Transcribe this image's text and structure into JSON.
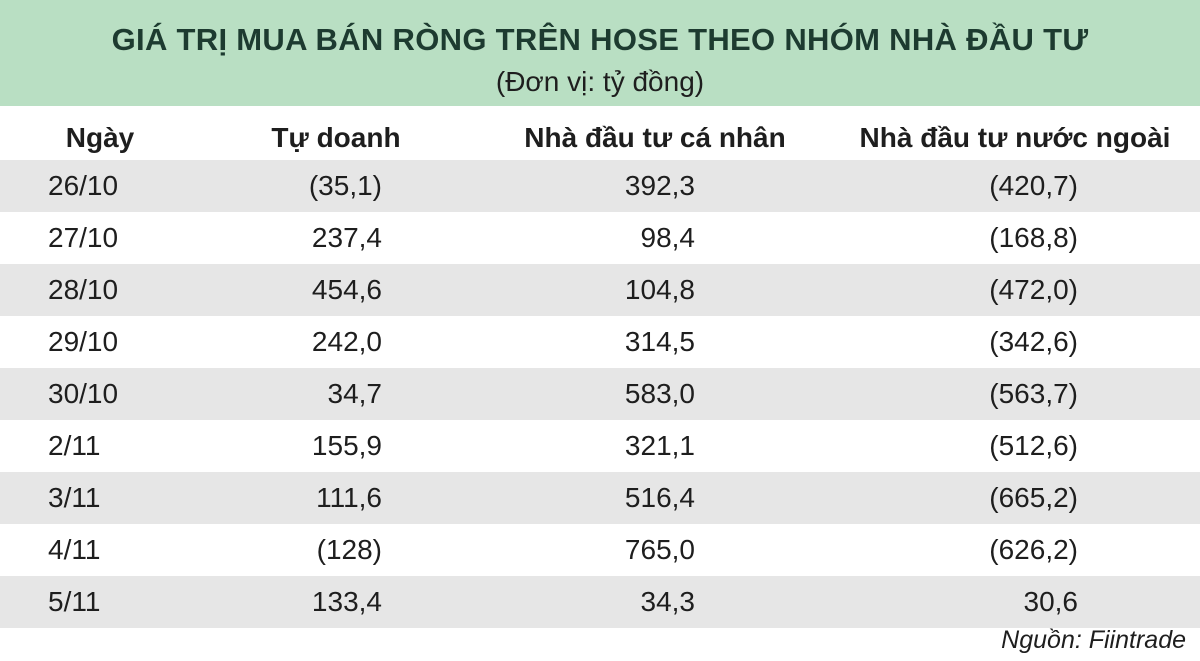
{
  "header": {
    "title": "GIÁ TRỊ MUA BÁN RÒNG TRÊN HOSE THEO NHÓM NHÀ ĐẦU TƯ",
    "subtitle": "(Đơn vị: tỷ đồng)"
  },
  "table": {
    "columns": [
      "Ngày",
      "Tự doanh",
      "Nhà đầu tư cá nhân",
      "Nhà đầu tư nước ngoài"
    ],
    "rows": [
      [
        "26/10",
        "(35,1)",
        "392,3",
        "(420,7)"
      ],
      [
        "27/10",
        "237,4",
        "98,4",
        "(168,8)"
      ],
      [
        "28/10",
        "454,6",
        "104,8",
        "(472,0)"
      ],
      [
        "29/10",
        "242,0",
        "314,5",
        "(342,6)"
      ],
      [
        "30/10",
        "34,7",
        "583,0",
        "(563,7)"
      ],
      [
        "2/11",
        "155,9",
        "321,1",
        "(512,6)"
      ],
      [
        "3/11",
        "111,6",
        "516,4",
        "(665,2)"
      ],
      [
        "4/11",
        "(128)",
        "765,0",
        "(626,2)"
      ],
      [
        "5/11",
        "133,4",
        "34,3",
        "30,6"
      ]
    ]
  },
  "source": "Nguồn: Fiintrade"
}
